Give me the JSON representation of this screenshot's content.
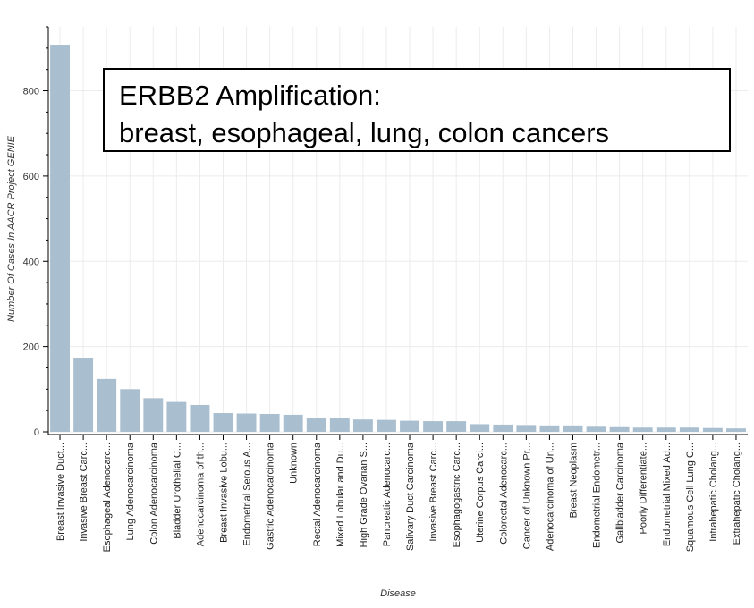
{
  "annotation": {
    "line1": "ERBB2 Amplification:",
    "line2": "breast, esophageal, lung, colon cancers"
  },
  "colors": {
    "bar": "#a9bfcf",
    "grid": "#ececec",
    "axis": "#000000"
  },
  "chart_data": {
    "type": "bar",
    "title": "",
    "xlabel": "Disease",
    "ylabel": "Number Of Cases In AACR Project GENIE",
    "ylim": [
      0,
      950
    ],
    "yticks": [
      0,
      200,
      400,
      600,
      800
    ],
    "grid": true,
    "categories": [
      "Breast Invasive Duct...",
      "Invasive Breast Carc...",
      "Esophageal Adenocarc...",
      "Lung Adenocarcinoma",
      "Colon Adenocarcinoma",
      "Bladder Urothelial C...",
      "Adenocarcinoma of th...",
      "Breast Invasive Lobu...",
      "Endometrial Serous A...",
      "Gastric Adenocarcinoma",
      "Unknown",
      "Rectal Adenocarcinoma",
      "Mixed Lobular and Du...",
      "High Grade Ovarian S...",
      "Pancreatic Adenocarc...",
      "Salivary Duct Carcinoma",
      "Invasive Breast Carc...",
      "Esophagogastric Carc...",
      "Uterine Corpus Carci...",
      "Colorectal Adenocarc...",
      "Cancer of Unknown Pr...",
      "Adenocarcinoma of Un...",
      "Breast Neoplasm",
      "Endometrial Endometr...",
      "Gallbladder Carcinoma",
      "Poorly Differentiate...",
      "Endometrial Mixed Ad...",
      "Squamous Cell Lung C...",
      "Intrahepatic Cholang...",
      "Extrahepatic Cholang..."
    ],
    "values": [
      908,
      174,
      124,
      100,
      79,
      70,
      63,
      44,
      43,
      42,
      40,
      33,
      32,
      29,
      28,
      26,
      25,
      25,
      18,
      17,
      16,
      15,
      15,
      12,
      11,
      10,
      10,
      10,
      9,
      8
    ]
  }
}
